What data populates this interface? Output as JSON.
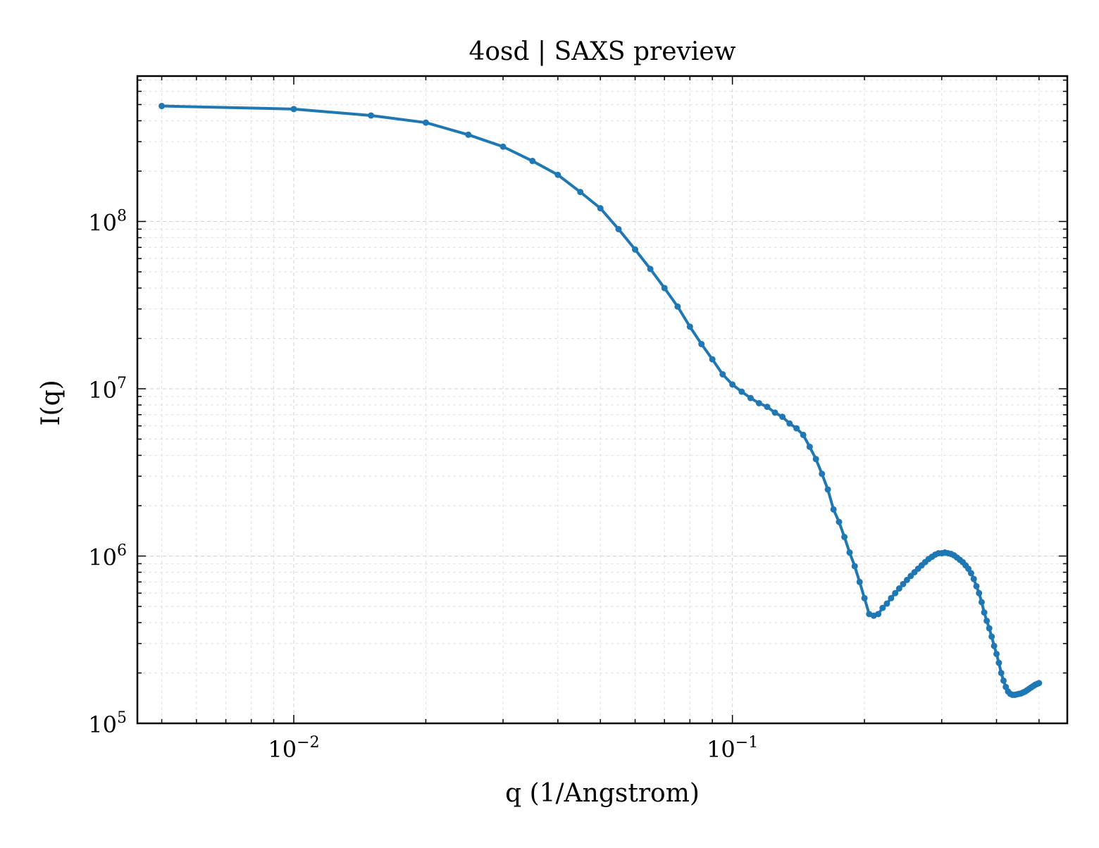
{
  "chart_data": {
    "type": "line",
    "title": "4osd | SAXS preview",
    "xlabel": "q (1/Angstrom)",
    "ylabel": "I(q)",
    "xscale": "log",
    "yscale": "log",
    "xlim": [
      0.0044,
      0.58
    ],
    "ylim": [
      100000,
      740000000
    ],
    "grid": true,
    "x_ticks": [
      {
        "value": 0.01,
        "base": "10",
        "exp": "−2"
      },
      {
        "value": 0.1,
        "base": "10",
        "exp": "−1"
      }
    ],
    "y_ticks": [
      {
        "value": 100000,
        "base": "10",
        "exp": "5"
      },
      {
        "value": 1000000,
        "base": "10",
        "exp": "6"
      },
      {
        "value": 10000000,
        "base": "10",
        "exp": "7"
      },
      {
        "value": 100000000,
        "base": "10",
        "exp": "8"
      }
    ],
    "colors": {
      "series": "#1f77b4"
    },
    "series": [
      {
        "x": [
          0.005,
          0.01,
          0.015,
          0.02,
          0.025,
          0.03,
          0.035,
          0.04,
          0.045,
          0.05,
          0.055,
          0.06,
          0.065,
          0.07,
          0.075,
          0.08,
          0.085,
          0.09,
          0.095,
          0.1,
          0.105,
          0.11,
          0.115,
          0.12,
          0.125,
          0.13,
          0.135,
          0.14,
          0.145,
          0.15,
          0.155,
          0.16,
          0.165,
          0.17,
          0.175,
          0.18,
          0.185,
          0.19,
          0.195,
          0.2,
          0.205,
          0.21,
          0.215,
          0.22,
          0.225,
          0.23,
          0.235,
          0.24,
          0.245,
          0.25,
          0.255,
          0.26,
          0.265,
          0.27,
          0.275,
          0.28,
          0.285,
          0.29,
          0.295,
          0.3,
          0.305,
          0.31,
          0.315,
          0.32,
          0.325,
          0.33,
          0.335,
          0.34,
          0.345,
          0.35,
          0.355,
          0.36,
          0.365,
          0.37,
          0.375,
          0.38,
          0.385,
          0.39,
          0.395,
          0.4,
          0.405,
          0.41,
          0.415,
          0.42,
          0.425,
          0.43,
          0.435,
          0.44,
          0.445,
          0.45,
          0.455,
          0.46,
          0.465,
          0.47,
          0.475,
          0.48,
          0.485,
          0.49,
          0.495,
          0.5
        ],
        "y": [
          490000000,
          470000000,
          430000000,
          390000000,
          330000000,
          280000000,
          230000000,
          190000000,
          150000000,
          120000000,
          90000000,
          68000000,
          52000000,
          40000000,
          31000000,
          23500000,
          18500000,
          15000000,
          12200000,
          10600000,
          9600000,
          8800000,
          8200000,
          7800000,
          7200000,
          6800000,
          6200000,
          5800000,
          5300000,
          4500000,
          3800000,
          3100000,
          2500000,
          1900000,
          1600000,
          1300000,
          1050000,
          870000,
          700000,
          560000,
          450000,
          440000,
          450000,
          490000,
          520000,
          560000,
          600000,
          640000,
          680000,
          720000,
          760000,
          800000,
          840000,
          880000,
          920000,
          960000,
          990000,
          1020000,
          1040000,
          1040000,
          1050000,
          1040000,
          1030000,
          1010000,
          980000,
          950000,
          920000,
          880000,
          840000,
          790000,
          730000,
          660000,
          600000,
          530000,
          460000,
          410000,
          370000,
          330000,
          290000,
          260000,
          230000,
          200000,
          180000,
          165000,
          155000,
          150000,
          148000,
          148000,
          149000,
          150000,
          151000,
          153000,
          155000,
          158000,
          161000,
          164000,
          167000,
          170000,
          172000,
          174000
        ]
      }
    ]
  }
}
